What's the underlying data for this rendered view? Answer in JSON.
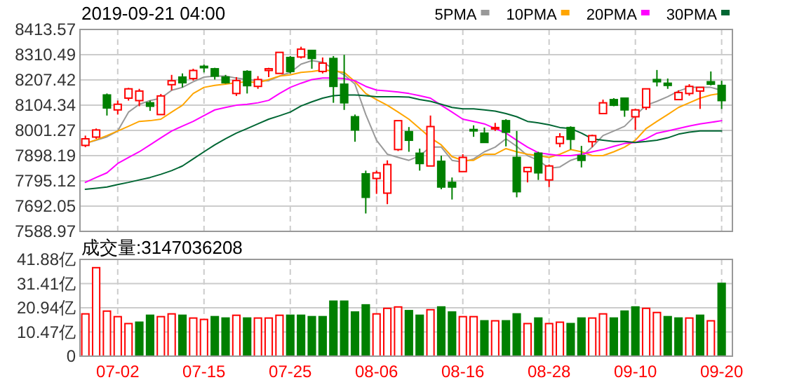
{
  "chart_data": [
    {
      "type": "candlestick",
      "title": "2019-09-21 04:00",
      "categories": [
        null,
        null,
        null,
        null,
        null,
        null,
        null,
        null,
        null,
        null,
        null,
        null,
        null,
        null,
        null,
        null,
        null,
        null,
        null,
        null,
        null,
        null,
        null,
        null,
        null,
        null,
        null,
        null,
        null,
        null,
        null,
        null,
        null,
        null,
        null,
        null,
        null,
        null,
        null,
        null,
        null,
        null,
        null,
        null,
        null,
        null,
        null,
        null,
        null,
        null,
        null,
        null,
        null,
        null,
        null,
        null,
        null,
        null,
        null,
        null
      ],
      "ohlc": [
        [
          7940,
          7980,
          7933,
          7967
        ],
        [
          7974,
          8009,
          7967,
          8003
        ],
        [
          8146,
          8152,
          8062,
          8093
        ],
        [
          8085,
          8123,
          8066,
          8108
        ],
        [
          8133,
          8175,
          8123,
          8171
        ],
        [
          8123,
          8171,
          8100,
          8162
        ],
        [
          8114,
          8123,
          8081,
          8100
        ],
        [
          8066,
          8150,
          8066,
          8142
        ],
        [
          8188,
          8228,
          8165,
          8204
        ],
        [
          8219,
          8234,
          8177,
          8196
        ],
        [
          8213,
          8253,
          8205,
          8246
        ],
        [
          8263,
          8270,
          8238,
          8259
        ],
        [
          8253,
          8257,
          8209,
          8223
        ],
        [
          8219,
          8228,
          8192,
          8196
        ],
        [
          8152,
          8219,
          8142,
          8205
        ],
        [
          8242,
          8247,
          8152,
          8184
        ],
        [
          8181,
          8223,
          8171,
          8209
        ],
        [
          8246,
          8257,
          8219,
          8253
        ],
        [
          8234,
          8320,
          8234,
          8320
        ],
        [
          8299,
          8305,
          8234,
          8242
        ],
        [
          8301,
          8343,
          8295,
          8333
        ],
        [
          8328,
          8328,
          8253,
          8295
        ],
        [
          8242,
          8299,
          8234,
          8276
        ],
        [
          8295,
          8305,
          8114,
          8181
        ],
        [
          8190,
          8310,
          8085,
          8114
        ],
        [
          8057,
          8066,
          7955,
          8003
        ],
        [
          7824,
          7837,
          7662,
          7728
        ],
        [
          7805,
          7837,
          7742,
          7828
        ],
        [
          7745,
          7879,
          7700,
          7862
        ],
        [
          7923,
          8041,
          7917,
          8041
        ],
        [
          7996,
          8015,
          7914,
          7961
        ],
        [
          7908,
          7927,
          7837,
          7866
        ],
        [
          7856,
          8062,
          7856,
          8017
        ],
        [
          7875,
          7898,
          7761,
          7770
        ],
        [
          7789,
          7809,
          7719,
          7770
        ],
        [
          7833,
          7904,
          7833,
          7891
        ],
        [
          8005,
          8022,
          7975,
          8001
        ],
        [
          7990,
          8013,
          7952,
          7952
        ],
        [
          8009,
          8032,
          7999,
          8013
        ],
        [
          8041,
          8047,
          7936,
          7994
        ],
        [
          7891,
          7999,
          7728,
          7751
        ],
        [
          7833,
          7850,
          7789,
          7850
        ],
        [
          7908,
          7914,
          7799,
          7828
        ],
        [
          7799,
          7862,
          7770,
          7856
        ],
        [
          7948,
          7990,
          7933,
          7975
        ],
        [
          8013,
          8018,
          7923,
          7965
        ],
        [
          7898,
          7938,
          7850,
          7879
        ],
        [
          7955,
          7984,
          7933,
          7980
        ],
        [
          8070,
          8127,
          8070,
          8114
        ],
        [
          8127,
          8133,
          8100,
          8104
        ],
        [
          8133,
          8133,
          8057,
          8085
        ],
        [
          8057,
          8089,
          8003,
          8085
        ],
        [
          8095,
          8171,
          8085,
          8171
        ],
        [
          8209,
          8248,
          8181,
          8200
        ],
        [
          8194,
          8213,
          8171,
          8185
        ],
        [
          8127,
          8165,
          8127,
          8156
        ],
        [
          8152,
          8190,
          8143,
          8181
        ],
        [
          8162,
          8177,
          8089,
          8177
        ],
        [
          8200,
          8242,
          8185,
          8190
        ],
        [
          8185,
          8204,
          8089,
          8123
        ]
      ],
      "colors": [
        "#ff0000",
        "#ff0000",
        "#008000",
        "#ff0000",
        "#ff0000",
        "#ff0000",
        "#008000",
        "#ff0000",
        "#ff0000",
        "#008000",
        "#ff0000",
        "#008000",
        "#008000",
        "#008000",
        "#ff0000",
        "#008000",
        "#ff0000",
        "#ff0000",
        "#ff0000",
        "#008000",
        "#ff0000",
        "#008000",
        "#ff0000",
        "#008000",
        "#008000",
        "#008000",
        "#008000",
        "#ff0000",
        "#ff0000",
        "#ff0000",
        "#008000",
        "#008000",
        "#ff0000",
        "#008000",
        "#008000",
        "#ff0000",
        "#008000",
        "#008000",
        "#ff0000",
        "#008000",
        "#008000",
        "#ff0000",
        "#008000",
        "#ff0000",
        "#ff0000",
        "#008000",
        "#008000",
        "#ff0000",
        "#ff0000",
        "#008000",
        "#008000",
        "#ff0000",
        "#ff0000",
        "#008000",
        "#008000",
        "#ff0000",
        "#ff0000",
        "#ff0000",
        "#008000",
        "#008000"
      ],
      "series": [
        {
          "name": "5PMA",
          "type": "line",
          "color": "#999999",
          "values": [
            7948,
            7961,
            7975,
            7999,
            8076,
            8108,
            8123,
            8133,
            8165,
            8177,
            8200,
            8219,
            8223,
            8223,
            8215,
            8209,
            8204,
            8204,
            8223,
            8238,
            8272,
            8286,
            8280,
            8253,
            8228,
            8190,
            8066,
            7961,
            7904,
            7891,
            7879,
            7898,
            7933,
            7933,
            7879,
            7872,
            7885,
            7914,
            7933,
            7967,
            7936,
            7898,
            7879,
            7847,
            7852,
            7879,
            7894,
            7933,
            7980,
            7999,
            8018,
            8062,
            8104,
            8120,
            8139,
            8162,
            8177,
            8177,
            8177,
            8165
          ]
        },
        {
          "name": "10PMA",
          "type": "line",
          "color": "#ffa500",
          "values": [
            7948,
            7963,
            7980,
            7999,
            8018,
            8038,
            8041,
            8047,
            8076,
            8104,
            8152,
            8177,
            8185,
            8190,
            8196,
            8200,
            8196,
            8209,
            8223,
            8228,
            8238,
            8242,
            8248,
            8244,
            8238,
            8200,
            8152,
            8127,
            8104,
            8076,
            8047,
            8009,
            7971,
            7942,
            7894,
            7879,
            7879,
            7904,
            7904,
            7927,
            7914,
            7904,
            7898,
            7891,
            7904,
            7923,
            7914,
            7898,
            7898,
            7914,
            7933,
            7961,
            8009,
            8038,
            8066,
            8095,
            8114,
            8133,
            8146,
            8152
          ]
        },
        {
          "name": "20PMA",
          "type": "line",
          "color": "#ff00ff",
          "values": [
            7789,
            7809,
            7828,
            7866,
            7891,
            7914,
            7942,
            7971,
            7999,
            8019,
            8038,
            8062,
            8085,
            8095,
            8104,
            8108,
            8114,
            8124,
            8152,
            8177,
            8194,
            8209,
            8215,
            8215,
            8213,
            8204,
            8181,
            8166,
            8162,
            8158,
            8152,
            8143,
            8133,
            8104,
            8076,
            8047,
            8038,
            8028,
            8009,
            7990,
            7961,
            7933,
            7910,
            7904,
            7898,
            7898,
            7904,
            7914,
            7923,
            7936,
            7948,
            7952,
            7967,
            7990,
            7999,
            8009,
            8019,
            8028,
            8034,
            8041
          ]
        },
        {
          "name": "30PMA",
          "type": "line",
          "color": "#006633",
          "values": [
            7761,
            7765,
            7770,
            7780,
            7789,
            7799,
            7809,
            7822,
            7837,
            7856,
            7885,
            7914,
            7942,
            7967,
            7990,
            8009,
            8028,
            8047,
            8061,
            8076,
            8101,
            8118,
            8133,
            8143,
            8146,
            8146,
            8143,
            8139,
            8139,
            8139,
            8137,
            8127,
            8120,
            8108,
            8095,
            8089,
            8089,
            8085,
            8080,
            8070,
            8057,
            8038,
            8032,
            8024,
            8013,
            8009,
            7990,
            7967,
            7961,
            7956,
            7956,
            7952,
            7956,
            7961,
            7971,
            7986,
            7994,
            7999,
            7999,
            7999
          ]
        }
      ],
      "ylim": [
        7588.97,
        8413.57
      ],
      "yticks": [
        7588.97,
        7692.05,
        7795.12,
        7898.19,
        8001.27,
        8104.34,
        8207.42,
        8310.49,
        8413.57
      ],
      "grid": true,
      "legend": "top right",
      "tick_labels": "y"
    },
    {
      "type": "bar",
      "title": "成交量:3147036208",
      "categories": [
        null,
        null,
        null,
        "07-02",
        null,
        null,
        null,
        null,
        null,
        null,
        null,
        "07-15",
        null,
        null,
        null,
        null,
        null,
        null,
        null,
        "07-25",
        null,
        null,
        null,
        null,
        null,
        null,
        null,
        "08-06",
        null,
        null,
        null,
        null,
        null,
        null,
        null,
        "08-16",
        null,
        null,
        null,
        null,
        null,
        null,
        null,
        "08-28",
        null,
        null,
        null,
        null,
        null,
        null,
        null,
        "09-10",
        null,
        null,
        null,
        null,
        null,
        null,
        null,
        "09-20"
      ],
      "values": [
        18.3,
        38.3,
        19.5,
        17.1,
        14.1,
        14.7,
        17.7,
        17.1,
        18.3,
        17.7,
        16.5,
        15.9,
        17.1,
        16.5,
        17.7,
        16.5,
        16.5,
        16.5,
        17.7,
        17.7,
        17.7,
        17.1,
        17.1,
        23.8,
        23.8,
        19.1,
        22.2,
        18.3,
        20.7,
        21.3,
        19.7,
        17.7,
        20.1,
        21.3,
        19.1,
        17.1,
        17.1,
        15.3,
        15.3,
        15.3,
        18.3,
        14.1,
        16.5,
        14.1,
        14.7,
        14.1,
        16.5,
        16.5,
        18.3,
        16.5,
        19.5,
        21.3,
        20.7,
        18.9,
        17.1,
        16.5,
        16.5,
        17.7,
        15.3,
        31.5
      ],
      "colors": [
        "#ff0000",
        "#ff0000",
        "#ff0000",
        "#ff0000",
        "#ff0000",
        "#008000",
        "#008000",
        "#ff0000",
        "#ff0000",
        "#008000",
        "#ff0000",
        "#ff0000",
        "#008000",
        "#008000",
        "#ff0000",
        "#008000",
        "#ff0000",
        "#ff0000",
        "#ff0000",
        "#008000",
        "#008000",
        "#008000",
        "#008000",
        "#008000",
        "#008000",
        "#008000",
        "#008000",
        "#ff0000",
        "#ff0000",
        "#ff0000",
        "#008000",
        "#008000",
        "#ff0000",
        "#008000",
        "#008000",
        "#ff0000",
        "#ff0000",
        "#008000",
        "#ff0000",
        "#008000",
        "#008000",
        "#ff0000",
        "#008000",
        "#ff0000",
        "#ff0000",
        "#008000",
        "#008000",
        "#ff0000",
        "#ff0000",
        "#008000",
        "#008000",
        "#008000",
        "#ff0000",
        "#ff0000",
        "#008000",
        "#008000",
        "#ff0000",
        "#008000",
        "#ff0000",
        "#008000"
      ],
      "ylim": [
        0,
        41.88
      ],
      "yticks": [
        0,
        {
          "value": 10.47,
          "label": "10.47亿"
        },
        {
          "value": 20.94,
          "label": "20.94亿"
        },
        {
          "value": 31.41,
          "label": "31.41亿"
        },
        {
          "value": 41.88,
          "label": "41.88亿"
        }
      ],
      "grid": true
    }
  ]
}
